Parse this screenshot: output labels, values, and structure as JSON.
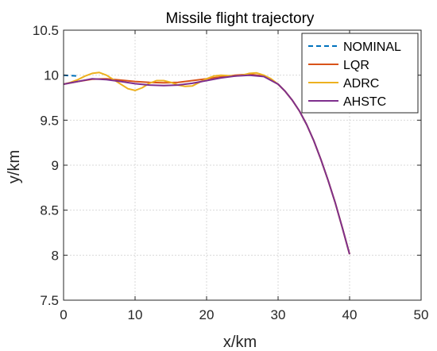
{
  "chart_data": {
    "type": "line",
    "title": "Missile flight trajectory",
    "xlabel": "x/km",
    "ylabel": "y/km",
    "xlim": [
      0,
      50
    ],
    "ylim": [
      7.5,
      10.5
    ],
    "xticks": [
      "0",
      "10",
      "20",
      "30",
      "40",
      "50"
    ],
    "yticks": [
      "7.5",
      "8",
      "8.5",
      "9",
      "9.5",
      "10",
      "10.5"
    ],
    "grid": true,
    "legend_position": "top-right",
    "series": [
      {
        "name": "NOMINAL",
        "color": "#0072BD",
        "dashed": true,
        "x": [
          0,
          2
        ],
        "y": [
          10.0,
          9.99
        ]
      },
      {
        "name": "LQR",
        "color": "#D95319",
        "dashed": false,
        "x": [
          0,
          2,
          4,
          6,
          8,
          10,
          12,
          14,
          16,
          18,
          20,
          22,
          24,
          26,
          28,
          30,
          31,
          32,
          33,
          34,
          35,
          36,
          37,
          38,
          39,
          40
        ],
        "y": [
          9.9,
          9.93,
          9.955,
          9.96,
          9.945,
          9.93,
          9.92,
          9.915,
          9.92,
          9.94,
          9.96,
          9.98,
          10.0,
          10.01,
          9.99,
          9.9,
          9.82,
          9.72,
          9.6,
          9.45,
          9.27,
          9.06,
          8.83,
          8.58,
          8.3,
          8.01
        ]
      },
      {
        "name": "ADRC",
        "color": "#EDB120",
        "dashed": false,
        "x": [
          0,
          1,
          2,
          3,
          4,
          5,
          6,
          7,
          8,
          9,
          10,
          11,
          12,
          13,
          14,
          15,
          16,
          17,
          18,
          19,
          20,
          21,
          22,
          23,
          24,
          25,
          26,
          27,
          28,
          29,
          30,
          31,
          32,
          33,
          34,
          35,
          36,
          37,
          38,
          39,
          40
        ],
        "y": [
          9.9,
          9.92,
          9.95,
          9.99,
          10.02,
          10.03,
          10.0,
          9.95,
          9.9,
          9.85,
          9.83,
          9.86,
          9.91,
          9.94,
          9.94,
          9.92,
          9.89,
          9.875,
          9.88,
          9.92,
          9.96,
          9.99,
          10.0,
          9.995,
          9.99,
          10.0,
          10.02,
          10.025,
          10.0,
          9.96,
          9.9,
          9.82,
          9.72,
          9.6,
          9.45,
          9.27,
          9.06,
          8.83,
          8.58,
          8.3,
          8.01
        ]
      },
      {
        "name": "AHSTC",
        "color": "#7E2F8E",
        "dashed": false,
        "x": [
          0,
          2,
          4,
          6,
          8,
          10,
          12,
          14,
          16,
          18,
          20,
          22,
          24,
          26,
          28,
          30,
          31,
          32,
          33,
          34,
          35,
          36,
          37,
          38,
          39,
          40
        ],
        "y": [
          9.9,
          9.93,
          9.96,
          9.95,
          9.93,
          9.905,
          9.89,
          9.885,
          9.89,
          9.91,
          9.94,
          9.97,
          9.99,
          10.0,
          9.985,
          9.9,
          9.82,
          9.72,
          9.6,
          9.45,
          9.27,
          9.06,
          8.83,
          8.58,
          8.3,
          8.01
        ]
      }
    ]
  }
}
